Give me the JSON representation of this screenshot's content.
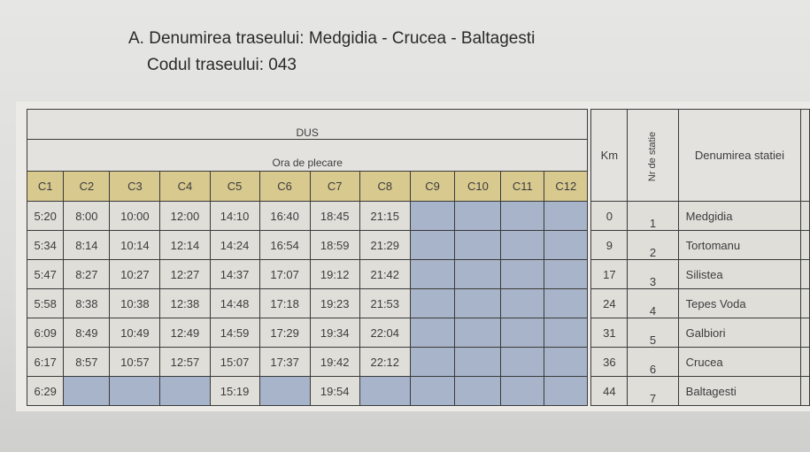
{
  "title": "A. Denumirea traseului: Medgidia - Crucea - Baltagesti",
  "code": "Codul traseului: 043",
  "direction": "DUS",
  "departure_header": "Ora de plecare",
  "courses": [
    "C1",
    "C2",
    "C3",
    "C4",
    "C5",
    "C6",
    "C7",
    "C8",
    "C9",
    "C10",
    "C11",
    "C12"
  ],
  "km_header": "Km",
  "nr_header": "Nr de statie",
  "station_header": "Denumirea statiei",
  "colors": {
    "header_row": "#d8c98f",
    "empty_cell": "#a8b4c9"
  },
  "rows": [
    {
      "times": [
        "5:20",
        "8:00",
        "10:00",
        "12:00",
        "14:10",
        "16:40",
        "18:45",
        "21:15",
        "",
        "",
        "",
        ""
      ],
      "km": "0",
      "nr": "1",
      "station": "Medgidia"
    },
    {
      "times": [
        "5:34",
        "8:14",
        "10:14",
        "12:14",
        "14:24",
        "16:54",
        "18:59",
        "21:29",
        "",
        "",
        "",
        ""
      ],
      "km": "9",
      "nr": "2",
      "station": "Tortomanu"
    },
    {
      "times": [
        "5:47",
        "8:27",
        "10:27",
        "12:27",
        "14:37",
        "17:07",
        "19:12",
        "21:42",
        "",
        "",
        "",
        ""
      ],
      "km": "17",
      "nr": "3",
      "station": "Silistea"
    },
    {
      "times": [
        "5:58",
        "8:38",
        "10:38",
        "12:38",
        "14:48",
        "17:18",
        "19:23",
        "21:53",
        "",
        "",
        "",
        ""
      ],
      "km": "24",
      "nr": "4",
      "station": "Tepes Voda"
    },
    {
      "times": [
        "6:09",
        "8:49",
        "10:49",
        "12:49",
        "14:59",
        "17:29",
        "19:34",
        "22:04",
        "",
        "",
        "",
        ""
      ],
      "km": "31",
      "nr": "5",
      "station": "Galbiori"
    },
    {
      "times": [
        "6:17",
        "8:57",
        "10:57",
        "12:57",
        "15:07",
        "17:37",
        "19:42",
        "22:12",
        "",
        "",
        "",
        ""
      ],
      "km": "36",
      "nr": "6",
      "station": "Crucea"
    },
    {
      "times": [
        "6:29",
        "",
        "",
        "",
        "15:19",
        "",
        "19:54",
        "",
        "",
        "",
        "",
        ""
      ],
      "km": "44",
      "nr": "7",
      "station": "Baltagesti"
    }
  ]
}
